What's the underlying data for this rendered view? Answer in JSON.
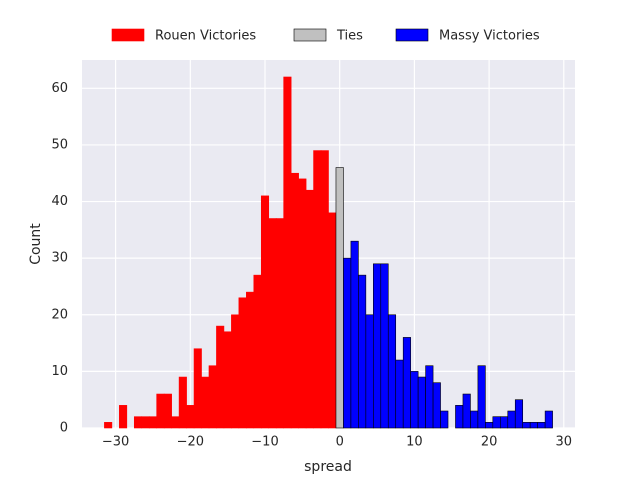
{
  "chart_data": {
    "type": "histogram",
    "xlabel": "spread",
    "ylabel": "Count",
    "series": [
      {
        "name": "Rouen Victories",
        "color": "#ff0000",
        "edgecolor": "#ff0000",
        "bins": [
          -31.5,
          -30.5,
          -29.5,
          -28.5,
          -27.5,
          -26.5,
          -25.5,
          -24.5,
          -23.5,
          -22.5,
          -21.5,
          -20.5,
          -19.5,
          -18.5,
          -17.5,
          -16.5,
          -15.5,
          -14.5,
          -13.5,
          -12.5,
          -11.5,
          -10.5,
          -9.5,
          -8.5,
          -7.5,
          -6.5,
          -5.5,
          -4.5,
          -3.5,
          -2.5,
          -1.5,
          -0.5
        ],
        "values": [
          1,
          0,
          4,
          0,
          2,
          2,
          2,
          6,
          6,
          2,
          9,
          4,
          14,
          9,
          11,
          18,
          17,
          20,
          23,
          24,
          27,
          41,
          37,
          37,
          62,
          45,
          44,
          42,
          49,
          49,
          38
        ]
      },
      {
        "name": "Ties",
        "color": "#c0c0c0",
        "edgecolor": "#000000",
        "bins": [
          -0.5,
          0.5
        ],
        "values": [
          46
        ]
      },
      {
        "name": "Massy Victories",
        "color": "#0000ff",
        "edgecolor": "#000000",
        "bins": [
          0.5,
          1.5,
          2.5,
          3.5,
          4.5,
          5.5,
          6.5,
          7.5,
          8.5,
          9.5,
          10.5,
          11.5,
          12.5,
          13.5,
          14.5,
          15.5,
          16.5,
          17.5,
          18.5,
          19.5,
          20.5,
          21.5,
          22.5,
          23.5,
          24.5,
          25.5,
          26.5,
          27.5,
          28.5
        ],
        "values": [
          30,
          33,
          27,
          20,
          29,
          29,
          20,
          12,
          16,
          10,
          9,
          11,
          8,
          3,
          0,
          4,
          6,
          3,
          11,
          1,
          2,
          2,
          3,
          5,
          1,
          1,
          1,
          3
        ]
      }
    ],
    "xlim": [
      -34.5,
      31.5
    ],
    "xticks": [
      {
        "value": -30,
        "label": "−30"
      },
      {
        "value": -20,
        "label": "−20"
      },
      {
        "value": -10,
        "label": "−10"
      },
      0,
      10,
      20,
      30
    ],
    "ylim": [
      0,
      65
    ],
    "yticks": [
      0,
      10,
      20,
      30,
      40,
      50,
      60
    ],
    "grid": true,
    "legend": "top"
  }
}
